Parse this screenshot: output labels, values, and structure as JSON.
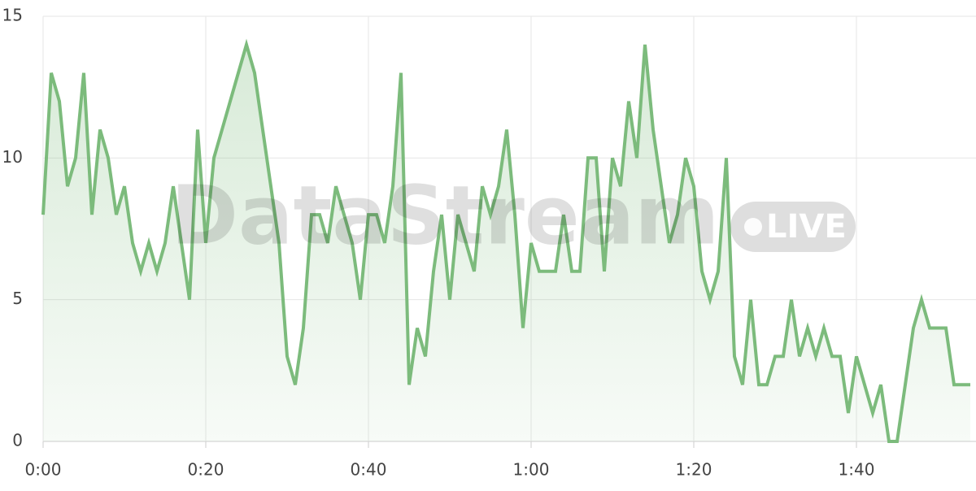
{
  "chart_data": {
    "type": "area-line",
    "watermark": "DataStream",
    "badge": "LIVE",
    "x": [
      0,
      1,
      2,
      3,
      4,
      5,
      6,
      7,
      8,
      9,
      10,
      11,
      12,
      13,
      14,
      15,
      16,
      17,
      18,
      19,
      20,
      21,
      22,
      23,
      24,
      25,
      26,
      27,
      28,
      29,
      30,
      31,
      32,
      33,
      34,
      35,
      36,
      37,
      38,
      39,
      40,
      41,
      42,
      43,
      44,
      45,
      46,
      47,
      48,
      49,
      50,
      51,
      52,
      53,
      54,
      55,
      56,
      57,
      58,
      59,
      60,
      61,
      62,
      63,
      64,
      65,
      66,
      67,
      68,
      69,
      70,
      71,
      72,
      73,
      74,
      75,
      76,
      77,
      78,
      79,
      80,
      81,
      82,
      83,
      84,
      85,
      86,
      87,
      88,
      89,
      90,
      91,
      92,
      93,
      94,
      95,
      96,
      97,
      98,
      99,
      100,
      101,
      102,
      103,
      104,
      105,
      106,
      107,
      108,
      109,
      110,
      111,
      112,
      113,
      114
    ],
    "series": [
      {
        "color": "#7cbb7c",
        "values": [
          8,
          13,
          12,
          9,
          10,
          13,
          8,
          11,
          10,
          8,
          9,
          7,
          6,
          7,
          6,
          7,
          9,
          7,
          5,
          11,
          7,
          10,
          11,
          12,
          13,
          14,
          13,
          11,
          9,
          7,
          3,
          2,
          4,
          8,
          8,
          7,
          9,
          8,
          7,
          5,
          8,
          8,
          7,
          9,
          13,
          2,
          4,
          3,
          6,
          8,
          5,
          8,
          7,
          6,
          9,
          8,
          9,
          11,
          8,
          4,
          7,
          6,
          6,
          6,
          8,
          6,
          6,
          10,
          10,
          6,
          10,
          9,
          12,
          10,
          14,
          11,
          9,
          7,
          8,
          10,
          9,
          6,
          5,
          6,
          10,
          3,
          2,
          5,
          2,
          2,
          3,
          3,
          5,
          3,
          4,
          3,
          4,
          3,
          3,
          1,
          3,
          2,
          1,
          2,
          0,
          0,
          2,
          4,
          5,
          4,
          4,
          4,
          2,
          2,
          2
        ]
      }
    ],
    "xlim": [
      0,
      114.7
    ],
    "xticks": [
      {
        "value": 0,
        "label": "0:00"
      },
      {
        "value": 20,
        "label": "0:20"
      },
      {
        "value": 40,
        "label": "0:40"
      },
      {
        "value": 60,
        "label": "1:00"
      },
      {
        "value": 80,
        "label": "1:20"
      },
      {
        "value": 100,
        "label": "1:40"
      }
    ],
    "ylim": [
      0,
      15
    ],
    "yticks": [
      0,
      5,
      10,
      15
    ],
    "grid": true
  }
}
